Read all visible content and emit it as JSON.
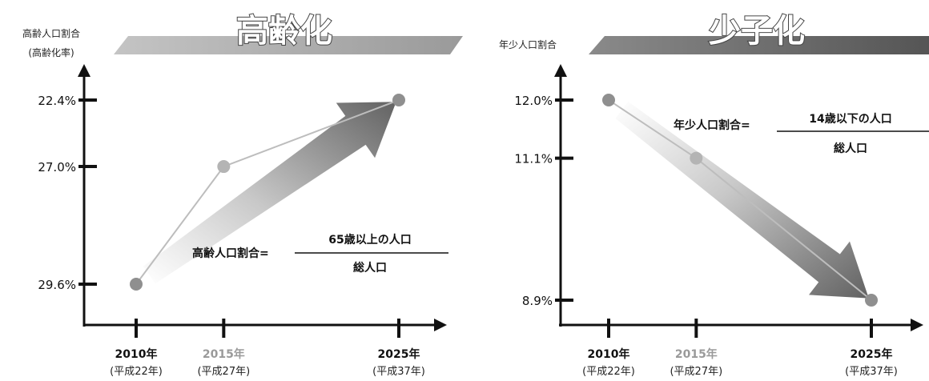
{
  "colors": {
    "aging_banner": "#a8a8a8",
    "birth_banner": "#6e6e6e",
    "axis": "#111111",
    "point": "#8f8f8f",
    "point_mid": "#b4b4b4",
    "line": "#bdbdbd",
    "arrow_dark": "#6a6a6a",
    "muted_label": "#9a9a9a"
  },
  "chart_data": [
    {
      "type": "line",
      "title": "高齢化",
      "ylabel": "高齢人口割合",
      "ylabel_sub": "(高齢化率)",
      "categories": [
        "2010年",
        "2015年",
        "2025年"
      ],
      "categories_sub": [
        "(平成22年)",
        "(平成27年)",
        "(平成37年)"
      ],
      "x": [
        2010,
        2015,
        2025
      ],
      "values": [
        22.4,
        27.0,
        29.6
      ],
      "tick_labels": [
        "29.6%",
        "27.0%",
        "22.4%"
      ],
      "formula": {
        "label": "高齢人口割合=",
        "numerator": "65歳以上の人口",
        "denominator": "総人口"
      },
      "grid": false
    },
    {
      "type": "line",
      "title": "少子化",
      "ylabel": "年少人口割合",
      "categories": [
        "2010年",
        "2015年",
        "2025年"
      ],
      "categories_sub": [
        "(平成22年)",
        "(平成27年)",
        "(平成37年)"
      ],
      "x": [
        2010,
        2015,
        2025
      ],
      "values": [
        12.0,
        11.1,
        8.9
      ],
      "tick_labels": [
        "12.0%",
        "11.1%",
        "8.9%"
      ],
      "formula": {
        "label": "年少人口割合=",
        "numerator": "14歳以下の人口",
        "denominator": "総人口"
      },
      "grid": false
    }
  ]
}
